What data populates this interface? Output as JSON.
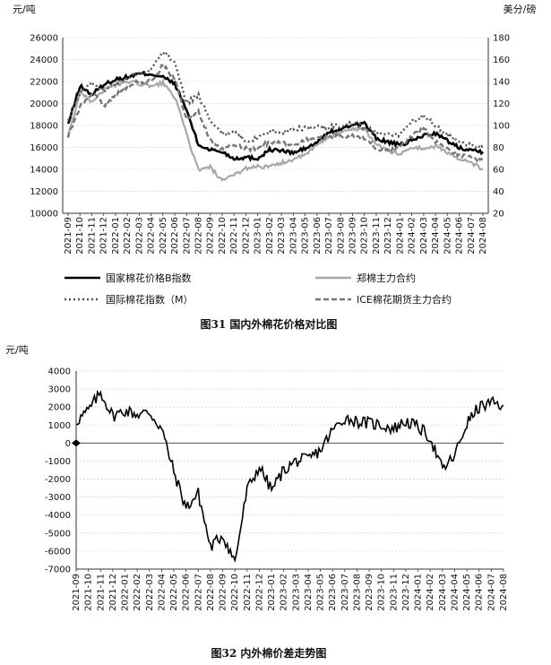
{
  "chart_data": [
    {
      "type": "line",
      "title": "图31 国内外棉花价格对比图",
      "left_unit": "元/吨",
      "right_unit": "美分/磅",
      "ylim_left": [
        10000,
        26000
      ],
      "yticks_left": [
        10000,
        12000,
        14000,
        16000,
        18000,
        20000,
        22000,
        24000,
        26000
      ],
      "ylim_right": [
        20,
        180
      ],
      "yticks_right": [
        20,
        40,
        60,
        80,
        100,
        120,
        140,
        160,
        180
      ],
      "xticks": [
        "2021-09",
        "2021-10",
        "2021-11",
        "2021-12",
        "2022-01",
        "2022-02",
        "2022-03",
        "2022-04",
        "2022-05",
        "2022-06",
        "2022-07",
        "2022-08",
        "2022-09",
        "2022-10",
        "2022-11",
        "2022-12",
        "2023-01",
        "2023-02",
        "2023-03",
        "2023-04",
        "2023-05",
        "2023-06",
        "2023-07",
        "2023-08",
        "2023-09",
        "2023-10",
        "2023-11",
        "2023-12",
        "2024-01",
        "2024-02",
        "2024-03",
        "2024-04",
        "2024-05",
        "2024-06",
        "2024-07",
        "2024-08"
      ],
      "grid": true,
      "legend": [
        {
          "name": "国家棉花价格B指数",
          "style": "solid",
          "color": "#000000"
        },
        {
          "name": "郑棉主力合约",
          "style": "solid",
          "color": "#a8a8a8"
        },
        {
          "name": "国际棉花指数（M）",
          "style": "dotted",
          "color": "#555555"
        },
        {
          "name": "ICE棉花期货主力合约",
          "style": "dashed",
          "color": "#777777"
        }
      ],
      "series": [
        {
          "name": "国家棉花价格B指数",
          "axis": "left",
          "color": "#000000",
          "style": "solid",
          "values": [
            18100,
            21600,
            20800,
            21700,
            22200,
            22400,
            22700,
            22700,
            22400,
            21800,
            19400,
            16200,
            15800,
            15600,
            15000,
            15100,
            15000,
            15800,
            15700,
            15500,
            15900,
            16400,
            17400,
            17600,
            18100,
            18200,
            16800,
            16500,
            16200,
            16600,
            17100,
            17300,
            16600,
            16000,
            15800,
            15600
          ]
        },
        {
          "name": "郑棉主力合约",
          "axis": "left",
          "color": "#a8a8a8",
          "style": "solid",
          "values": [
            17000,
            21000,
            20200,
            21200,
            21700,
            22000,
            21800,
            21500,
            21900,
            20600,
            17200,
            13900,
            14200,
            12900,
            13500,
            14100,
            14300,
            14200,
            14600,
            14900,
            15300,
            16200,
            17000,
            17300,
            17700,
            17700,
            16300,
            15700,
            15400,
            16000,
            15900,
            16100,
            15600,
            14900,
            14600,
            14000
          ]
        },
        {
          "name": "国际棉花指数（M）",
          "axis": "right",
          "color": "#555555",
          "style": "dotted",
          "values": [
            105,
            130,
            140,
            132,
            138,
            143,
            148,
            150,
            168,
            157,
            120,
            128,
            103,
            92,
            93,
            87,
            88,
            95,
            94,
            96,
            98,
            98,
            99,
            100,
            102,
            98,
            93,
            91,
            92,
            104,
            109,
            100,
            92,
            86,
            82,
            80
          ]
        },
        {
          "name": "ICE棉花期货主力合约",
          "axis": "right",
          "color": "#777777",
          "style": "dashed",
          "values": [
            90,
            117,
            130,
            118,
            128,
            135,
            140,
            140,
            155,
            143,
            105,
            112,
            87,
            78,
            82,
            79,
            79,
            85,
            84,
            82,
            87,
            89,
            90,
            90,
            90,
            88,
            80,
            76,
            80,
            90,
            97,
            86,
            79,
            73,
            71,
            68
          ]
        }
      ]
    },
    {
      "type": "line",
      "title": "图32 内外棉价差走势图",
      "left_unit": "元/吨",
      "ylim": [
        -7000,
        4000
      ],
      "yticks": [
        -7000,
        -6000,
        -5000,
        -4000,
        -3000,
        -2000,
        -1000,
        0,
        1000,
        2000,
        3000,
        4000
      ],
      "xticks": [
        "2021-09",
        "2021-10",
        "2021-11",
        "2021-12",
        "2022-01",
        "2022-02",
        "2022-03",
        "2022-04",
        "2022-05",
        "2022-06",
        "2022-07",
        "2022-08",
        "2022-09",
        "2022-10",
        "2022-11",
        "2022-12",
        "2023-01",
        "2023-02",
        "2023-03",
        "2023-04",
        "2023-05",
        "2023-06",
        "2023-07",
        "2023-08",
        "2023-09",
        "2023-10",
        "2023-11",
        "2023-12",
        "2024-01",
        "2024-02",
        "2024-03",
        "2024-04",
        "2024-05",
        "2024-06",
        "2024-07",
        "2024-08"
      ],
      "grid": true,
      "series": [
        {
          "name": "",
          "color": "#000000",
          "style": "solid",
          "values": [
            1200,
            1800,
            2800,
            1500,
            1800,
            1600,
            1700,
            800,
            -1600,
            -3600,
            -2800,
            -5800,
            -5100,
            -6600,
            -2600,
            -1300,
            -2600,
            -1500,
            -1000,
            -900,
            -400,
            700,
            1400,
            1200,
            1100,
            1000,
            800,
            1200,
            900,
            300,
            -1500,
            -700,
            1100,
            2000,
            2200,
            2100
          ]
        }
      ]
    }
  ]
}
